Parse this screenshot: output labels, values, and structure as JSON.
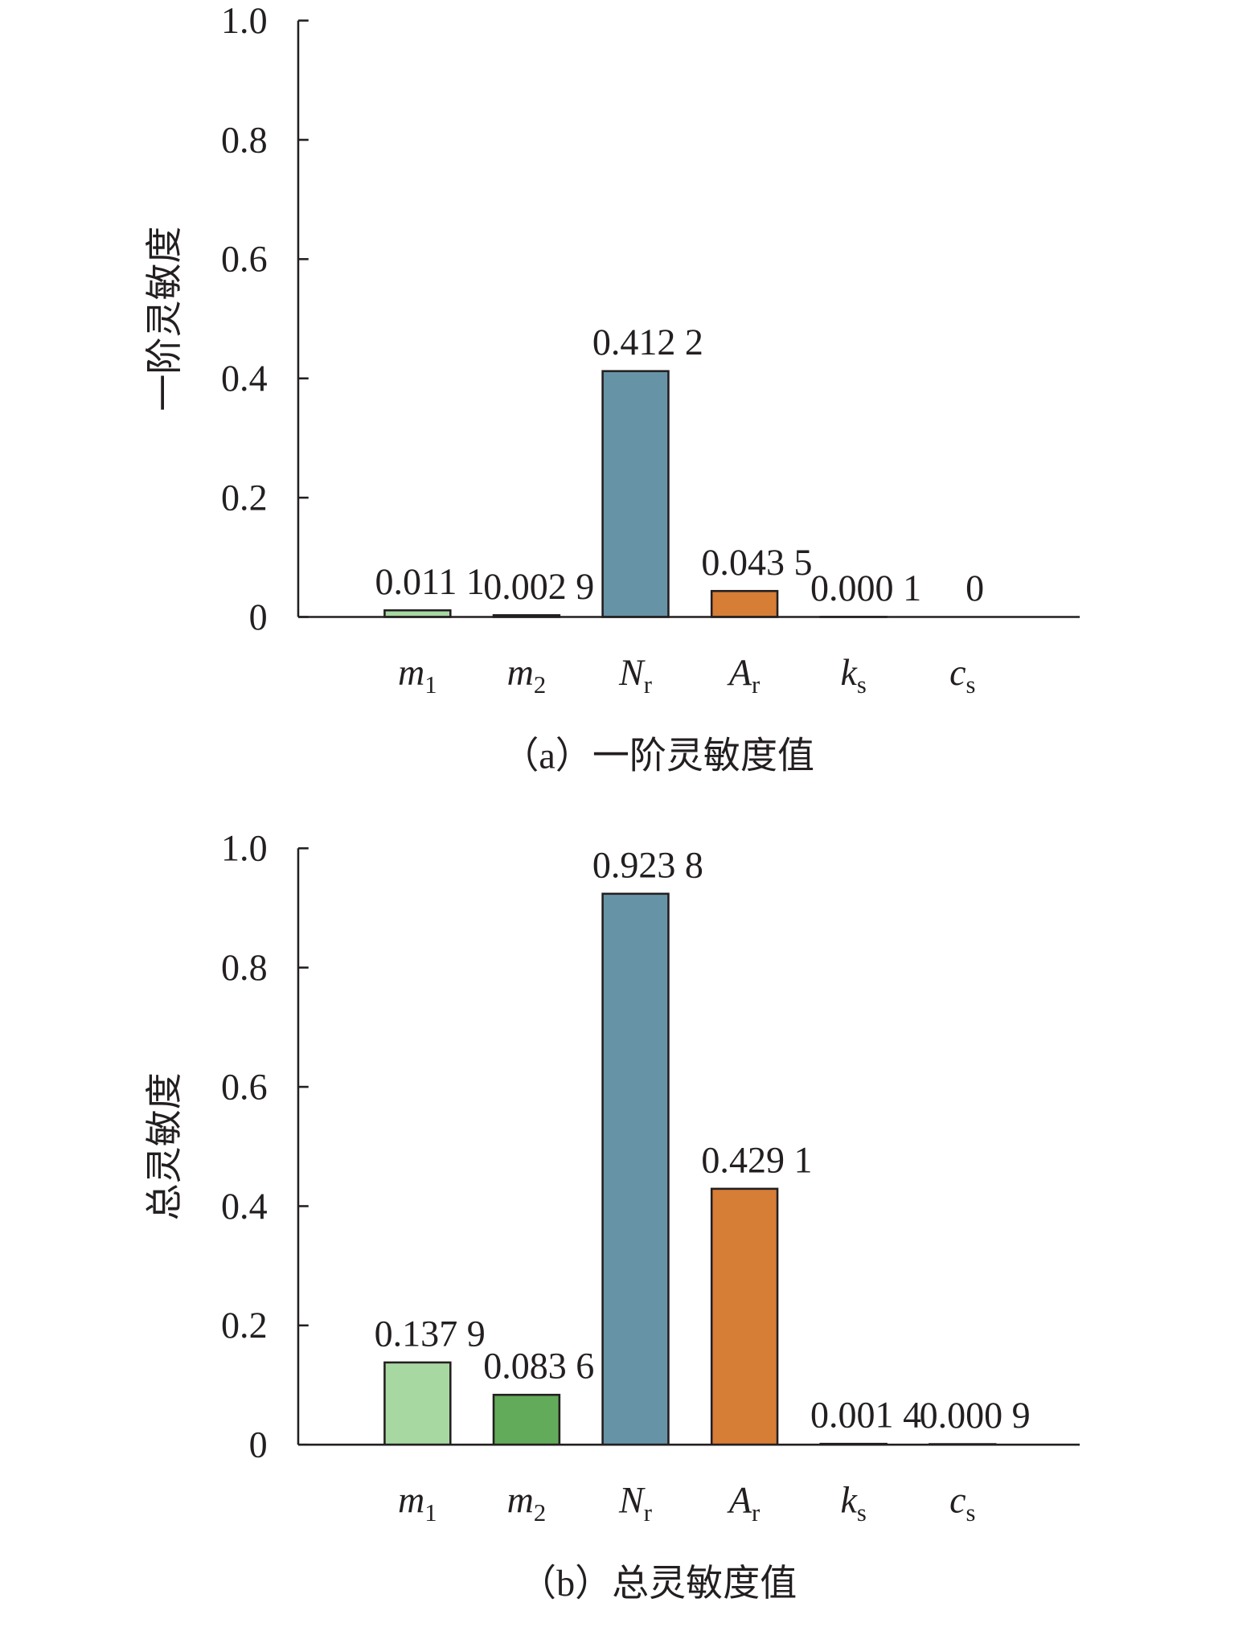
{
  "chart_data": [
    {
      "type": "bar",
      "y_label": "一阶灵敏度",
      "caption": "（a）一阶灵敏度值",
      "categories": [
        {
          "symbol": "m",
          "subscript": "1"
        },
        {
          "symbol": "m",
          "subscript": "2"
        },
        {
          "symbol": "N",
          "subscript": "r"
        },
        {
          "symbol": "A",
          "subscript": "r"
        },
        {
          "symbol": "k",
          "subscript": "s"
        },
        {
          "symbol": "c",
          "subscript": "s"
        }
      ],
      "values": [
        0.0111,
        0.0029,
        0.4122,
        0.0435,
        0.0001,
        0
      ],
      "value_labels": [
        "0.011 1",
        "0.002 9",
        "0.412 2",
        "0.043 5",
        "0.000 1",
        "0"
      ],
      "colors": [
        "#a8d8a2",
        "#62ab5a",
        "#6793a6",
        "#d67d36",
        "#8a8a8a",
        "#8a8a8a"
      ],
      "ylim": [
        0,
        1
      ],
      "yticks": [
        0,
        0.2,
        0.4,
        0.6,
        0.8,
        {
          "value": 1,
          "label": "1.0"
        }
      ]
    },
    {
      "type": "bar",
      "y_label": "总灵敏度",
      "caption": "（b）总灵敏度值",
      "categories": [
        {
          "symbol": "m",
          "subscript": "1"
        },
        {
          "symbol": "m",
          "subscript": "2"
        },
        {
          "symbol": "N",
          "subscript": "r"
        },
        {
          "symbol": "A",
          "subscript": "r"
        },
        {
          "symbol": "k",
          "subscript": "s"
        },
        {
          "symbol": "c",
          "subscript": "s"
        }
      ],
      "values": [
        0.1379,
        0.0836,
        0.9238,
        0.4291,
        0.0014,
        0.0009
      ],
      "value_labels": [
        "0.137 9",
        "0.083 6",
        "0.923 8",
        "0.429 1",
        "0.001 4",
        "0.000 9"
      ],
      "colors": [
        "#a8d8a2",
        "#62ab5a",
        "#6793a6",
        "#d67d36",
        "#8a8a8a",
        "#8a8a8a"
      ],
      "ylim": [
        0,
        1
      ],
      "yticks": [
        0,
        0.2,
        0.4,
        0.6,
        0.8,
        {
          "value": 1,
          "label": "1.0"
        }
      ]
    }
  ]
}
